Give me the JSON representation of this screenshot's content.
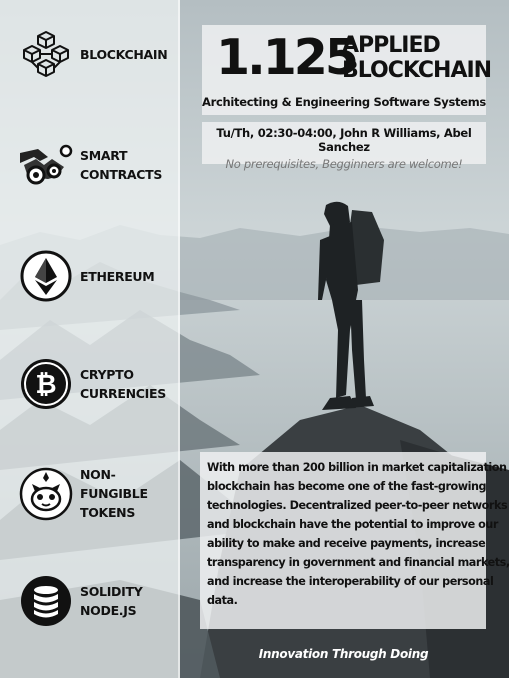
{
  "sidebar": {
    "items": [
      {
        "icon": "blockchain-cubes-icon",
        "lines": [
          "BLOCKCHAIN"
        ]
      },
      {
        "icon": "handshake-gears-icon",
        "lines": [
          "SMART",
          "CONTRACTS"
        ]
      },
      {
        "icon": "ethereum-icon",
        "lines": [
          "ETHEREUM"
        ]
      },
      {
        "icon": "bitcoin-icon",
        "lines": [
          "CRYPTO",
          "CURRENCIES"
        ]
      },
      {
        "icon": "nft-cat-icon",
        "lines": [
          "NON-FUNGIBLE",
          "TOKENS"
        ]
      },
      {
        "icon": "database-stack-icon",
        "lines": [
          "SOLIDITY",
          "NODE.JS"
        ]
      }
    ]
  },
  "header": {
    "course_number": "1.125",
    "course_name_line1": "APPLIED",
    "course_name_line2": "BLOCKCHAIN",
    "subtitle": "Architecting & Engineering Software Systems"
  },
  "info": {
    "schedule": "Tu/Th, 02:30-04:00, John R Williams, Abel Sanchez",
    "prerequisites": "No prerequisites, Begginners are welcome!"
  },
  "description": {
    "lines": [
      "With more than 200 billion in market capitalization",
      "blockchain has become one of the fast-growing",
      "technologies. Decentralized peer-to-peer networks",
      "and blockchain have the potential to  improve our",
      "ability to make and receive payments, increase",
      "transparency in government and financial markets,",
      "and increase the interoperability of our personal",
      "data."
    ]
  },
  "footer": {
    "tagline": "Innovation Through Doing"
  }
}
